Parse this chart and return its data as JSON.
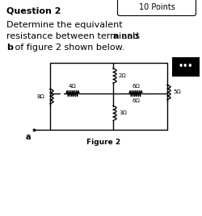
{
  "bg_color": "#ffffff",
  "title": "Question 2",
  "points": "10 Points",
  "line1": "Determine the equivalent",
  "line2a": "resistance between terminals ",
  "line2b": "a",
  "line2c": " and",
  "line3a": "b",
  "line3b": " of figure 2 shown below.",
  "fig_label": "Figure 2",
  "term_a": "a",
  "r8": "8Ω",
  "r4": "4Ω",
  "r2": "2Ω",
  "r3": "3Ω",
  "r6": "6Ω",
  "r5": "5Ω"
}
